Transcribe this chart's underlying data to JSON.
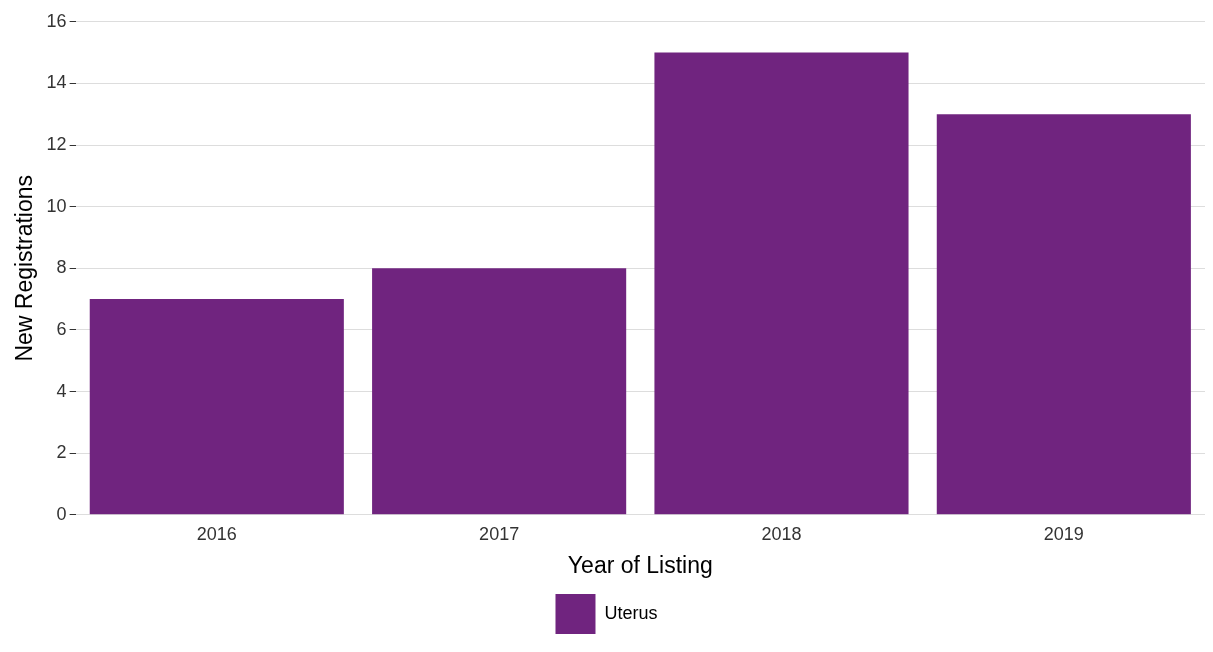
{
  "chart_data": {
    "type": "bar",
    "xlabel": "Year of Listing",
    "ylabel": "New Registrations",
    "categories": [
      "2016",
      "2017",
      "2018",
      "2019"
    ],
    "series": [
      {
        "name": "Uterus",
        "color": "#70247f",
        "values": [
          7,
          8,
          15,
          13
        ]
      }
    ],
    "ylim": [
      0,
      16
    ],
    "yticks": [
      0,
      2,
      4,
      6,
      8,
      10,
      12,
      14,
      16
    ],
    "grid": "y",
    "legend": "bottom"
  }
}
